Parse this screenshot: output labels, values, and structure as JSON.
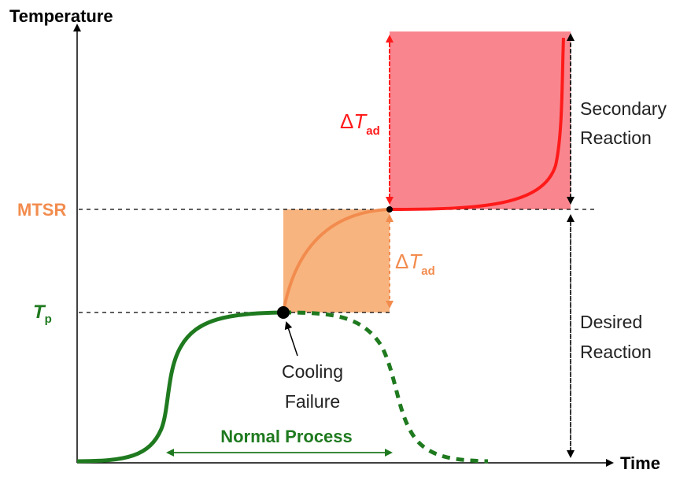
{
  "axes": {
    "y_label": "Temperature",
    "x_label": "Time"
  },
  "levels": {
    "mtsr": "MTSR",
    "tp_main": "T",
    "tp_sub": "p"
  },
  "delta": {
    "symbol": "Δ",
    "var": "T",
    "sub": "ad"
  },
  "annotations": {
    "secondary_line1": "Secondary",
    "secondary_line2": "Reaction",
    "desired_line1": "Desired",
    "desired_line2": "Reaction",
    "cooling_line1": "Cooling",
    "cooling_line2": "Failure",
    "normal_process": "Normal Process"
  },
  "colors": {
    "green": "#1f7a1f",
    "orange": "#f28c4e",
    "orange_fill": "#f7b47f",
    "red": "#ff1a1a",
    "red_fill": "#f9868e",
    "black": "#000000"
  }
}
